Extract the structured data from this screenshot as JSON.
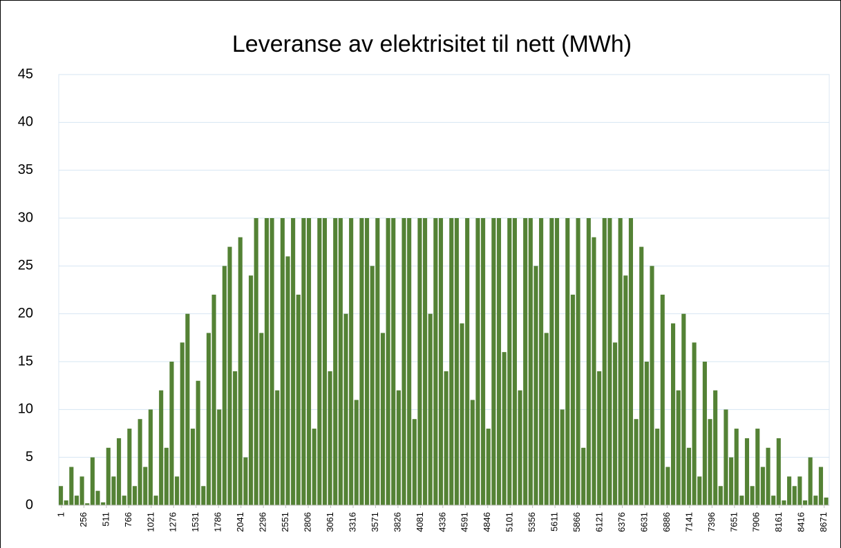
{
  "chart_data": {
    "type": "bar",
    "title": "Leveranse av elektrisitet til nett (MWh)",
    "color": "#548235",
    "grid": true,
    "xlim": [
      1,
      8760
    ],
    "ylim": [
      0,
      45
    ],
    "yticks": [
      0,
      5,
      10,
      15,
      20,
      25,
      30,
      35,
      40,
      45
    ],
    "xticks": [
      1,
      256,
      511,
      766,
      1021,
      1276,
      1531,
      1786,
      2041,
      2296,
      2551,
      2806,
      3061,
      3316,
      3571,
      3826,
      4081,
      4336,
      4591,
      4846,
      5101,
      5356,
      5611,
      5866,
      6121,
      6376,
      6631,
      6886,
      7141,
      7396,
      7651,
      7906,
      8161,
      8416,
      8671
    ],
    "x": [
      1,
      61,
      121,
      181,
      241,
      301,
      361,
      421,
      481,
      541,
      601,
      661,
      721,
      781,
      841,
      901,
      961,
      1021,
      1081,
      1141,
      1201,
      1261,
      1321,
      1381,
      1441,
      1501,
      1561,
      1621,
      1681,
      1741,
      1801,
      1861,
      1921,
      1981,
      2041,
      2101,
      2161,
      2221,
      2281,
      2341,
      2401,
      2461,
      2521,
      2581,
      2641,
      2701,
      2761,
      2821,
      2881,
      2941,
      3001,
      3061,
      3121,
      3181,
      3241,
      3301,
      3361,
      3421,
      3481,
      3541,
      3601,
      3661,
      3721,
      3781,
      3841,
      3901,
      3961,
      4021,
      4081,
      4141,
      4201,
      4261,
      4321,
      4381,
      4441,
      4501,
      4561,
      4621,
      4681,
      4741,
      4801,
      4861,
      4921,
      4981,
      5041,
      5101,
      5161,
      5221,
      5281,
      5341,
      5401,
      5461,
      5521,
      5581,
      5641,
      5701,
      5761,
      5821,
      5881,
      5941,
      6001,
      6061,
      6121,
      6181,
      6241,
      6301,
      6361,
      6421,
      6481,
      6541,
      6601,
      6661,
      6721,
      6781,
      6841,
      6901,
      6961,
      7021,
      7081,
      7141,
      7201,
      7261,
      7321,
      7381,
      7441,
      7501,
      7561,
      7621,
      7681,
      7741,
      7801,
      7861,
      7921,
      7981,
      8041,
      8101,
      8161,
      8221,
      8281,
      8341,
      8401,
      8461,
      8521,
      8581,
      8641,
      8701
    ],
    "values": [
      2,
      0.5,
      4,
      1,
      3,
      0.2,
      5,
      1.5,
      0.3,
      6,
      3,
      7,
      1,
      8,
      2,
      9,
      4,
      10,
      1,
      12,
      6,
      15,
      3,
      17,
      20,
      8,
      13,
      2,
      18,
      22,
      10,
      25,
      27,
      14,
      28,
      5,
      24,
      30,
      18,
      30,
      30,
      12,
      30,
      26,
      30,
      22,
      30,
      30,
      8,
      30,
      30,
      14,
      30,
      30,
      20,
      30,
      11,
      30,
      30,
      25,
      30,
      18,
      30,
      30,
      12,
      30,
      30,
      9,
      30,
      30,
      20,
      30,
      30,
      14,
      30,
      30,
      19,
      30,
      11,
      30,
      30,
      8,
      30,
      30,
      16,
      30,
      30,
      12,
      30,
      30,
      25,
      30,
      18,
      30,
      30,
      10,
      30,
      22,
      30,
      6,
      30,
      28,
      14,
      30,
      30,
      17,
      30,
      24,
      30,
      9,
      27,
      15,
      25,
      8,
      22,
      4,
      19,
      12,
      20,
      6,
      17,
      3,
      15,
      9,
      12,
      2,
      10,
      5,
      8,
      1,
      7,
      2,
      8,
      4,
      6,
      1,
      7,
      0.5,
      3,
      2,
      3,
      0.5,
      5,
      1,
      4,
      0.8
    ]
  }
}
